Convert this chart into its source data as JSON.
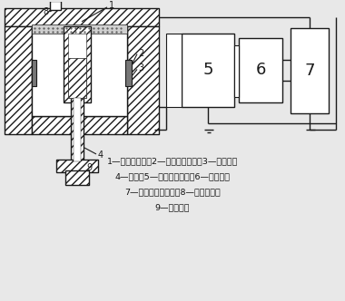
{
  "bg_color": "#e8e8e8",
  "line_color": "#1a1a1a",
  "legend_lines": [
    "1—陶瓷维维体；2—池体（阴极）；3—放射源；",
    "4—阳极；5—微电流放大器；6—记录仪；",
    "7—直流或脉冲电源；8—载气入口；",
    "9—样品出口"
  ],
  "box5_label": "5",
  "box6_label": "6",
  "box7_label": "7"
}
